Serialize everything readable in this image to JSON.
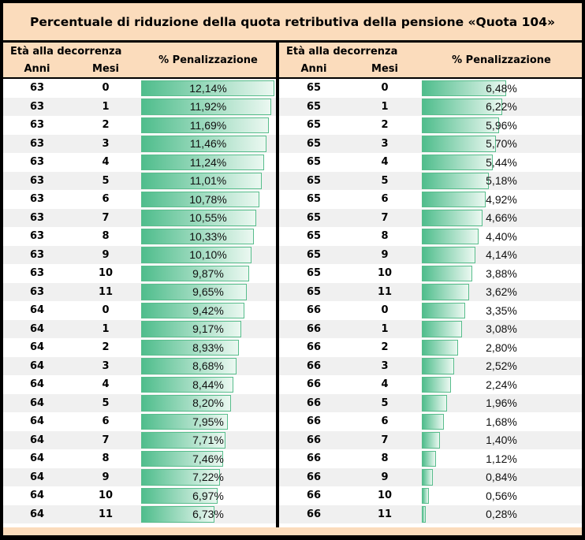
{
  "title": "Percentuale di riduzione della quota retributiva della pensione «Quota 104»",
  "header": {
    "age_label": "Età alla decorrenza",
    "anni": "Anni",
    "mesi": "Mesi",
    "penalty": "% Penalizzazione"
  },
  "colors": {
    "header_bg": "#FBDCBC",
    "row_alt": "#F0F0F0",
    "bar_start": "#4FBD8C",
    "bar_end": "#EBF8F1",
    "bar_border": "#58BD8C"
  },
  "chart_data": {
    "type": "bar",
    "title": "Percentuale di riduzione della quota retributiva della pensione «Quota 104»",
    "xlabel": "Età alla decorrenza (Anni, Mesi)",
    "ylabel": "% Penalizzazione",
    "max_value": 12.14,
    "value_format": "percent, comma decimal separator",
    "legend": "in-cell gradient data bars, length proportional to value",
    "sections": [
      {
        "side": "left",
        "rows": [
          {
            "anni": "63",
            "mesi": "0",
            "value": 12.14,
            "label": "12,14%"
          },
          {
            "anni": "63",
            "mesi": "1",
            "value": 11.92,
            "label": "11,92%"
          },
          {
            "anni": "63",
            "mesi": "2",
            "value": 11.69,
            "label": "11,69%"
          },
          {
            "anni": "63",
            "mesi": "3",
            "value": 11.46,
            "label": "11,46%"
          },
          {
            "anni": "63",
            "mesi": "4",
            "value": 11.24,
            "label": "11,24%"
          },
          {
            "anni": "63",
            "mesi": "5",
            "value": 11.01,
            "label": "11,01%"
          },
          {
            "anni": "63",
            "mesi": "6",
            "value": 10.78,
            "label": "10,78%"
          },
          {
            "anni": "63",
            "mesi": "7",
            "value": 10.55,
            "label": "10,55%"
          },
          {
            "anni": "63",
            "mesi": "8",
            "value": 10.33,
            "label": "10,33%"
          },
          {
            "anni": "63",
            "mesi": "9",
            "value": 10.1,
            "label": "10,10%"
          },
          {
            "anni": "63",
            "mesi": "10",
            "value": 9.87,
            "label": "9,87%"
          },
          {
            "anni": "63",
            "mesi": "11",
            "value": 9.65,
            "label": "9,65%"
          },
          {
            "anni": "64",
            "mesi": "0",
            "value": 9.42,
            "label": "9,42%"
          },
          {
            "anni": "64",
            "mesi": "1",
            "value": 9.17,
            "label": "9,17%"
          },
          {
            "anni": "64",
            "mesi": "2",
            "value": 8.93,
            "label": "8,93%"
          },
          {
            "anni": "64",
            "mesi": "3",
            "value": 8.68,
            "label": "8,68%"
          },
          {
            "anni": "64",
            "mesi": "4",
            "value": 8.44,
            "label": "8,44%"
          },
          {
            "anni": "64",
            "mesi": "5",
            "value": 8.2,
            "label": "8,20%"
          },
          {
            "anni": "64",
            "mesi": "6",
            "value": 7.95,
            "label": "7,95%"
          },
          {
            "anni": "64",
            "mesi": "7",
            "value": 7.71,
            "label": "7,71%"
          },
          {
            "anni": "64",
            "mesi": "8",
            "value": 7.46,
            "label": "7,46%"
          },
          {
            "anni": "64",
            "mesi": "9",
            "value": 7.22,
            "label": "7,22%"
          },
          {
            "anni": "64",
            "mesi": "10",
            "value": 6.97,
            "label": "6,97%"
          },
          {
            "anni": "64",
            "mesi": "11",
            "value": 6.73,
            "label": "6,73%"
          }
        ]
      },
      {
        "side": "right",
        "rows": [
          {
            "anni": "65",
            "mesi": "0",
            "value": 6.48,
            "label": "6,48%"
          },
          {
            "anni": "65",
            "mesi": "1",
            "value": 6.22,
            "label": "6,22%"
          },
          {
            "anni": "65",
            "mesi": "2",
            "value": 5.96,
            "label": "5,96%"
          },
          {
            "anni": "65",
            "mesi": "3",
            "value": 5.7,
            "label": "5,70%"
          },
          {
            "anni": "65",
            "mesi": "4",
            "value": 5.44,
            "label": "5,44%"
          },
          {
            "anni": "65",
            "mesi": "5",
            "value": 5.18,
            "label": "5,18%"
          },
          {
            "anni": "65",
            "mesi": "6",
            "value": 4.92,
            "label": "4,92%"
          },
          {
            "anni": "65",
            "mesi": "7",
            "value": 4.66,
            "label": "4,66%"
          },
          {
            "anni": "65",
            "mesi": "8",
            "value": 4.4,
            "label": "4,40%"
          },
          {
            "anni": "65",
            "mesi": "9",
            "value": 4.14,
            "label": "4,14%"
          },
          {
            "anni": "65",
            "mesi": "10",
            "value": 3.88,
            "label": "3,88%"
          },
          {
            "anni": "65",
            "mesi": "11",
            "value": 3.62,
            "label": "3,62%"
          },
          {
            "anni": "66",
            "mesi": "0",
            "value": 3.35,
            "label": "3,35%"
          },
          {
            "anni": "66",
            "mesi": "1",
            "value": 3.08,
            "label": "3,08%"
          },
          {
            "anni": "66",
            "mesi": "2",
            "value": 2.8,
            "label": "2,80%"
          },
          {
            "anni": "66",
            "mesi": "3",
            "value": 2.52,
            "label": "2,52%"
          },
          {
            "anni": "66",
            "mesi": "4",
            "value": 2.24,
            "label": "2,24%"
          },
          {
            "anni": "66",
            "mesi": "5",
            "value": 1.96,
            "label": "1,96%"
          },
          {
            "anni": "66",
            "mesi": "6",
            "value": 1.68,
            "label": "1,68%"
          },
          {
            "anni": "66",
            "mesi": "7",
            "value": 1.4,
            "label": "1,40%"
          },
          {
            "anni": "66",
            "mesi": "8",
            "value": 1.12,
            "label": "1,12%"
          },
          {
            "anni": "66",
            "mesi": "9",
            "value": 0.84,
            "label": "0,84%"
          },
          {
            "anni": "66",
            "mesi": "10",
            "value": 0.56,
            "label": "0,56%"
          },
          {
            "anni": "66",
            "mesi": "11",
            "value": 0.28,
            "label": "0,28%"
          }
        ]
      }
    ]
  }
}
